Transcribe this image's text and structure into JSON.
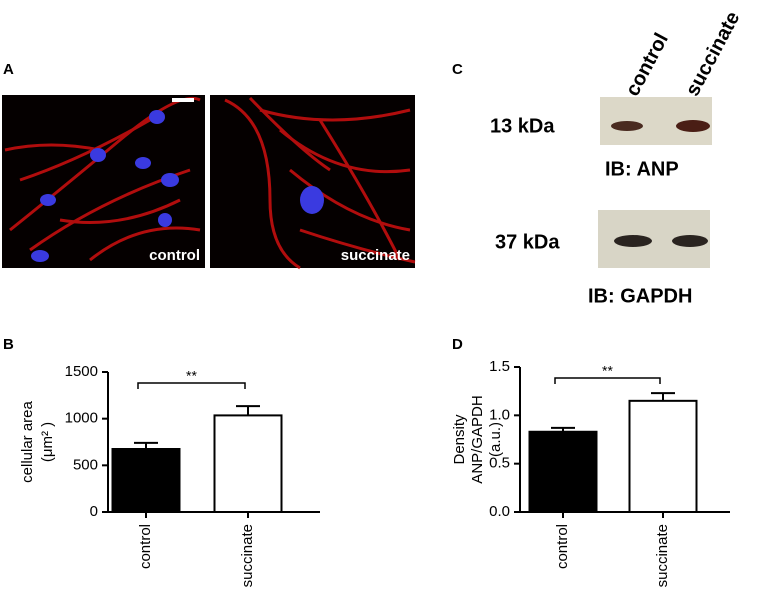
{
  "panels": {
    "a": "A",
    "b": "B",
    "c": "C",
    "d": "D"
  },
  "micrographs": [
    "control",
    "succinate"
  ],
  "blot": {
    "columns": [
      "control",
      "succinate"
    ],
    "rows": [
      {
        "size": "13 kDa",
        "label": "IB: ANP"
      },
      {
        "size": "37 kDa",
        "label": "IB: GAPDH"
      }
    ]
  },
  "chart_data": [
    {
      "type": "bar",
      "y_label": [
        "cellular area",
        "(μm² )"
      ],
      "categories": [
        "control",
        "succinate"
      ],
      "values": [
        675,
        1035
      ],
      "errors": [
        65,
        100
      ],
      "colors": [
        "#000000",
        "#ffffff"
      ],
      "ylim": [
        0,
        1500
      ],
      "yticks": [
        0,
        500,
        1000,
        1500
      ],
      "annotation": "**"
    },
    {
      "type": "bar",
      "y_label": [
        "Density",
        "ANP/GAPDH",
        "(a.u.)"
      ],
      "categories": [
        "control",
        "succinate"
      ],
      "values": [
        0.83,
        1.15
      ],
      "errors": [
        0.04,
        0.08
      ],
      "colors": [
        "#000000",
        "#ffffff"
      ],
      "ylim": [
        0,
        1.5
      ],
      "yticks": [
        {
          "value": 0,
          "label": "0.0"
        },
        0.5,
        {
          "value": 1,
          "label": "1.0"
        },
        1.5
      ],
      "annotation": "**"
    }
  ]
}
